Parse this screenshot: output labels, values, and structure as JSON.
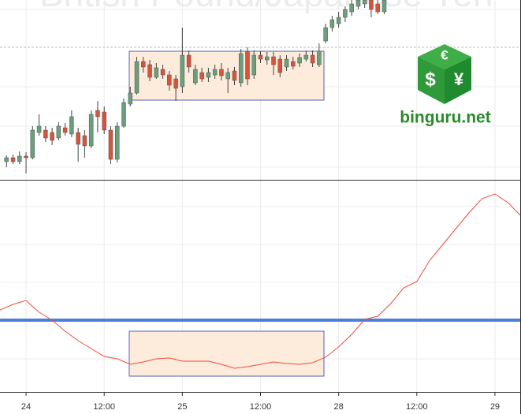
{
  "logo": "binguru.net",
  "chart_data": [
    {
      "type": "candlestick",
      "title": "British Pound/Japanese Yen",
      "up_color": "#6b9f7c",
      "down_color": "#d6543c",
      "xlim": [
        -1,
        79
      ],
      "ylim": [
        0,
        228
      ],
      "x": [
        0,
        1,
        2,
        3,
        4,
        5,
        6,
        7,
        8,
        9,
        10,
        11,
        12,
        13,
        14,
        15,
        16,
        17,
        18,
        19,
        20,
        21,
        22,
        23,
        24,
        25,
        26,
        27,
        28,
        29,
        30,
        31,
        32,
        33,
        34,
        35,
        36,
        37,
        38,
        39,
        40,
        41,
        42,
        43,
        44,
        45,
        46,
        47,
        48,
        49,
        50,
        51,
        52,
        53,
        54,
        55,
        56,
        57,
        58
      ],
      "open": [
        23,
        28,
        23,
        30,
        28,
        60,
        63,
        60,
        53,
        66,
        58,
        60,
        56,
        43,
        88,
        86,
        63,
        26,
        68,
        96,
        110,
        150,
        146,
        130,
        140,
        133,
        128,
        118,
        158,
        123,
        136,
        130,
        133,
        140,
        128,
        138,
        123,
        163,
        133,
        158,
        152,
        156,
        153,
        143,
        150,
        148,
        153,
        158,
        146,
        176,
        193,
        198,
        206,
        213,
        220,
        223,
        228,
        223,
        213
      ],
      "high": [
        31,
        32,
        36,
        35,
        68,
        83,
        68,
        66,
        73,
        72,
        88,
        66,
        63,
        88,
        100,
        93,
        68,
        73,
        103,
        118,
        156,
        156,
        152,
        148,
        146,
        138,
        133,
        193,
        164,
        146,
        142,
        142,
        146,
        148,
        142,
        143,
        166,
        168,
        164,
        163,
        162,
        162,
        158,
        158,
        156,
        160,
        164,
        164,
        173,
        198,
        208,
        213,
        220,
        228,
        228,
        228,
        228,
        228,
        228
      ],
      "low": [
        16,
        20,
        20,
        8,
        26,
        56,
        48,
        44,
        50,
        56,
        54,
        23,
        28,
        40,
        60,
        58,
        20,
        22,
        66,
        93,
        108,
        136,
        125,
        128,
        128,
        113,
        100,
        110,
        136,
        120,
        124,
        124,
        128,
        126,
        110,
        120,
        118,
        120,
        128,
        148,
        146,
        133,
        130,
        138,
        140,
        143,
        150,
        143,
        143,
        173,
        188,
        193,
        200,
        208,
        216,
        218,
        206,
        210,
        210
      ],
      "close": [
        28,
        23,
        30,
        28,
        63,
        68,
        53,
        50,
        68,
        60,
        80,
        45,
        43,
        83,
        80,
        63,
        26,
        68,
        98,
        110,
        150,
        143,
        130,
        142,
        133,
        120,
        116,
        158,
        143,
        140,
        128,
        136,
        140,
        132,
        136,
        126,
        160,
        128,
        158,
        153,
        156,
        146,
        136,
        153,
        144,
        155,
        158,
        148,
        163,
        193,
        203,
        206,
        216,
        223,
        228,
        228,
        216,
        213,
        228
      ]
    },
    {
      "type": "line",
      "color": "#f04b3c",
      "level": 91,
      "level_color": "#4a7fe0",
      "xlim": [
        -1,
        79
      ],
      "ylim": [
        0,
        268
      ],
      "xticks": [
        {
          "value": 3,
          "label": "24"
        },
        {
          "value": 15,
          "label": "12:00"
        },
        {
          "value": 27,
          "label": "25"
        },
        {
          "value": 39,
          "label": "12:00"
        },
        {
          "value": 51,
          "label": "28"
        },
        {
          "value": 63,
          "label": "12:00"
        },
        {
          "value": 75,
          "label": "29"
        }
      ],
      "x": [
        -1,
        1,
        3,
        5,
        7,
        9,
        11,
        13,
        15,
        17,
        19,
        21,
        23,
        25,
        27,
        29,
        31,
        33,
        35,
        37,
        39,
        41,
        43,
        45,
        47,
        49,
        51,
        53,
        55,
        57,
        59,
        61,
        63,
        65,
        67,
        69,
        71,
        73,
        75,
        77,
        79
      ],
      "values": [
        104,
        111,
        116,
        101,
        91,
        77,
        65,
        55,
        45,
        42,
        35,
        38,
        42,
        43,
        39,
        39,
        39,
        35,
        30,
        32,
        35,
        38,
        36,
        35,
        37,
        44,
        57,
        73,
        92,
        96,
        112,
        132,
        140,
        167,
        187,
        207,
        227,
        245,
        251,
        240,
        223
      ]
    }
  ]
}
